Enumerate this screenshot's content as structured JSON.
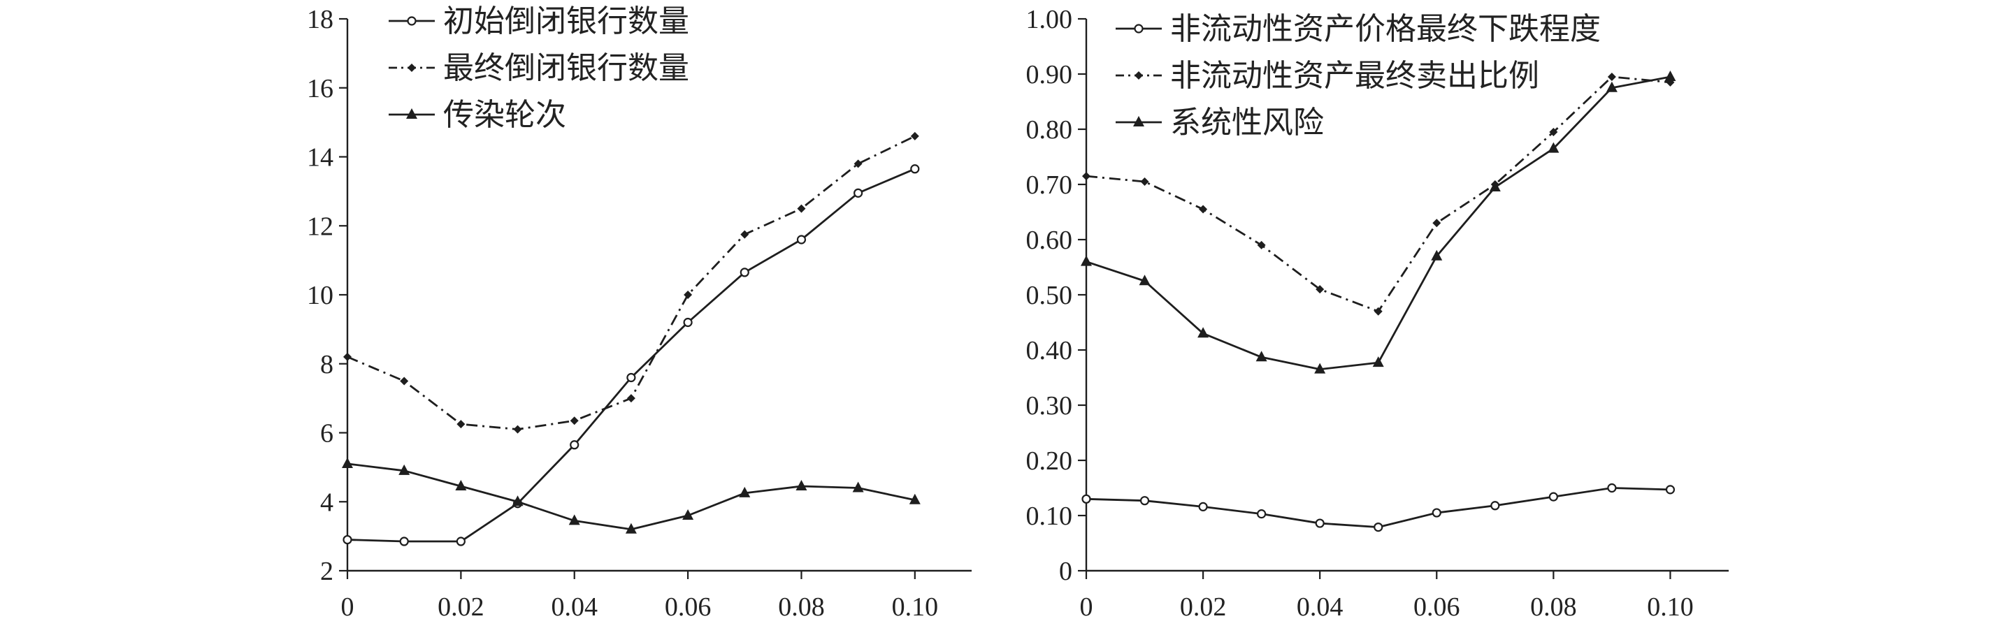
{
  "chart_data": [
    {
      "type": "line",
      "title": "",
      "xlabel": "",
      "ylabel": "",
      "x": [
        0,
        0.01,
        0.02,
        0.03,
        0.04,
        0.05,
        0.06,
        0.07,
        0.08,
        0.09,
        0.1
      ],
      "xlim": [
        0,
        0.11
      ],
      "ylim": [
        2,
        18
      ],
      "xticks": [
        0,
        0.02,
        0.04,
        0.06,
        0.08,
        0.1
      ],
      "xtick_labels": [
        "0",
        "0.02",
        "0.04",
        "0.06",
        "0.08",
        "0.10"
      ],
      "yticks": [
        2,
        4,
        6,
        8,
        10,
        12,
        14,
        16,
        18
      ],
      "ytick_labels": [
        "2",
        "4",
        "6",
        "8",
        "10",
        "12",
        "14",
        "16",
        "18"
      ],
      "legend_position": "top-left",
      "series": [
        {
          "name": "初始倒闭银行数量",
          "style": "solid",
          "marker": "circle",
          "values": [
            2.9,
            2.85,
            2.85,
            3.95,
            5.65,
            7.6,
            9.2,
            10.65,
            11.6,
            12.95,
            13.65
          ]
        },
        {
          "name": "最终倒闭银行数量",
          "style": "dashdot",
          "marker": "diamond",
          "values": [
            8.2,
            7.5,
            6.25,
            6.1,
            6.35,
            7.0,
            10.0,
            11.75,
            12.5,
            13.8,
            14.6
          ]
        },
        {
          "name": "传染轮次",
          "style": "solid",
          "marker": "triangle",
          "values": [
            5.1,
            4.9,
            4.45,
            4.0,
            3.45,
            3.2,
            3.6,
            4.25,
            4.45,
            4.4,
            4.05
          ]
        }
      ]
    },
    {
      "type": "line",
      "title": "",
      "xlabel": "",
      "ylabel": "",
      "x": [
        0,
        0.01,
        0.02,
        0.03,
        0.04,
        0.05,
        0.06,
        0.07,
        0.08,
        0.09,
        0.1
      ],
      "xlim": [
        0,
        0.11
      ],
      "ylim": [
        0,
        1.0
      ],
      "xticks": [
        0,
        0.02,
        0.04,
        0.06,
        0.08,
        0.1
      ],
      "xtick_labels": [
        "0",
        "0.02",
        "0.04",
        "0.06",
        "0.08",
        "0.10"
      ],
      "yticks": [
        0,
        0.1,
        0.2,
        0.3,
        0.4,
        0.5,
        0.6,
        0.7,
        0.8,
        0.9,
        1.0
      ],
      "ytick_labels": [
        "0",
        "0.10",
        "0.20",
        "0.30",
        "0.40",
        "0.50",
        "0.60",
        "0.70",
        "0.80",
        "0.90",
        "1.00"
      ],
      "legend_position": "top-left",
      "series": [
        {
          "name": "非流动性资产价格最终下跌程度",
          "style": "solid",
          "marker": "circle",
          "values": [
            0.13,
            0.127,
            0.116,
            0.103,
            0.086,
            0.079,
            0.105,
            0.118,
            0.134,
            0.15,
            0.147
          ]
        },
        {
          "name": "非流动性资产最终卖出比例",
          "style": "dashdot",
          "marker": "diamond",
          "values": [
            0.715,
            0.705,
            0.655,
            0.59,
            0.51,
            0.47,
            0.63,
            0.7,
            0.795,
            0.895,
            0.885
          ]
        },
        {
          "name": "系统性风险",
          "style": "solid",
          "marker": "triangle",
          "values": [
            0.56,
            0.525,
            0.43,
            0.387,
            0.365,
            0.377,
            0.57,
            0.695,
            0.765,
            0.875,
            0.895
          ]
        }
      ]
    }
  ]
}
